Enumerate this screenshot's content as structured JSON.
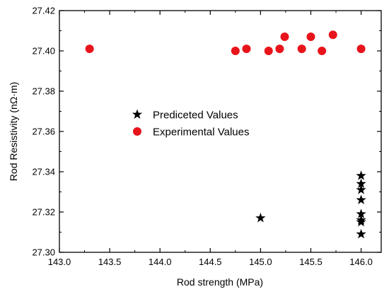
{
  "chart_data": {
    "type": "scatter",
    "xlabel": "Rod strength (MPa)",
    "ylabel": "Rod Resistivity (nΩ·m)",
    "xlim": [
      143.0,
      146.2
    ],
    "ylim": [
      27.3,
      27.42
    ],
    "x_ticks": [
      "143.0",
      "143.5",
      "144.0",
      "144.5",
      "145.0",
      "145.5",
      "146.0"
    ],
    "y_ticks": [
      "27.30",
      "27.32",
      "27.34",
      "27.36",
      "27.38",
      "27.40",
      "27.42"
    ],
    "x_tick_values": [
      143.0,
      143.5,
      144.0,
      144.5,
      145.0,
      145.5,
      146.0
    ],
    "y_tick_values": [
      27.3,
      27.32,
      27.34,
      27.36,
      27.38,
      27.4,
      27.42
    ],
    "legend_position": "center",
    "series": [
      {
        "name": "Prediceted Values",
        "marker": "star",
        "color": "#000000",
        "points": [
          [
            145.0,
            27.317
          ],
          [
            146.0,
            27.338
          ],
          [
            146.0,
            27.334
          ],
          [
            146.0,
            27.331
          ],
          [
            146.0,
            27.326
          ],
          [
            146.0,
            27.319
          ],
          [
            146.0,
            27.316
          ],
          [
            146.0,
            27.315
          ],
          [
            146.0,
            27.309
          ]
        ]
      },
      {
        "name": "Experimental Values",
        "marker": "circle",
        "color": "#e8141b",
        "points": [
          [
            143.3,
            27.401
          ],
          [
            144.75,
            27.4
          ],
          [
            144.86,
            27.401
          ],
          [
            145.08,
            27.4
          ],
          [
            145.19,
            27.401
          ],
          [
            145.24,
            27.407
          ],
          [
            145.41,
            27.401
          ],
          [
            145.5,
            27.407
          ],
          [
            145.61,
            27.4
          ],
          [
            145.72,
            27.408
          ],
          [
            146.0,
            27.401
          ]
        ]
      }
    ]
  }
}
